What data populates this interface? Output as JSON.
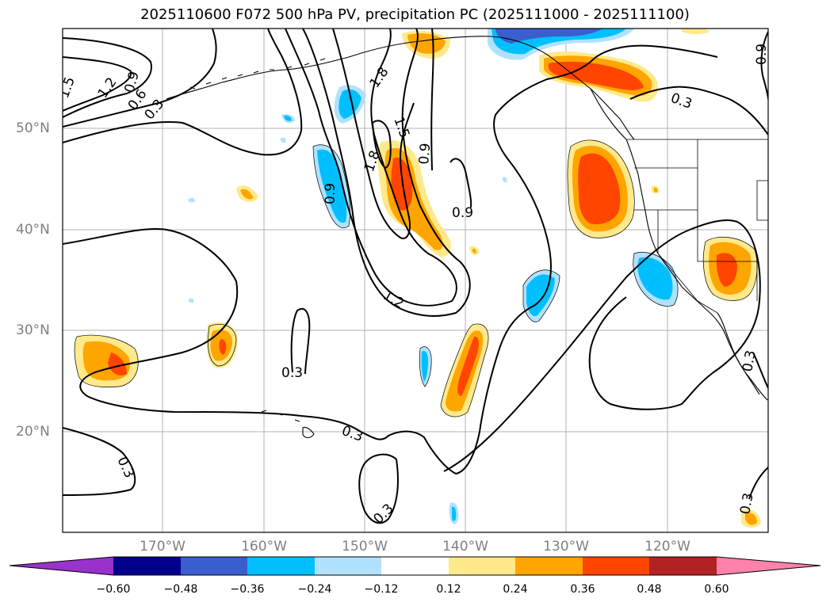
{
  "title": "2025110600 F072 500 hPa PV, precipitation PC (2025111000 - 2025111100)",
  "lat_labels": [
    "50°N",
    "40°N",
    "30°N",
    "20°N"
  ],
  "lon_labels": [
    "170°W",
    "160°W",
    "150°W",
    "140°W",
    "130°W",
    "120°W"
  ],
  "contour_labels": [
    "1.5",
    "1.2",
    "0.9",
    "0.6",
    "0.3",
    "1.8",
    "1.5",
    "1.8",
    "0.9",
    "0.9",
    "0.9",
    "0.3",
    "0.9",
    "1.2",
    "0.3",
    "0.3",
    "0.3",
    "0.3",
    "0.3",
    "0.3"
  ],
  "colorbar": {
    "ticks": [
      "−0.60",
      "−0.48",
      "−0.36",
      "−0.24",
      "−0.12",
      "0.12",
      "0.24",
      "0.36",
      "0.48",
      "0.60"
    ],
    "colors": [
      "#9932cc",
      "#00008b",
      "#3a5fcd",
      "#00bfff",
      "#b0e2ff",
      "#ffffff",
      "#ffe98a",
      "#ffa500",
      "#ff4500",
      "#b22222",
      "#ff82ab"
    ]
  },
  "fill_colors": {
    "neg_light": "#b0e2ff",
    "neg_mid": "#00bfff",
    "neg_strong": "#3a5fcd",
    "pos_light": "#ffe98a",
    "pos_mid": "#ffa500",
    "pos_strong": "#ff4500"
  }
}
